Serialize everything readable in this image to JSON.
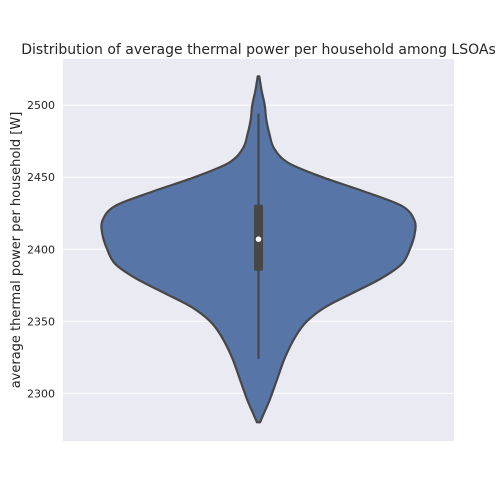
{
  "chart_data": {
    "type": "violin",
    "title": "Distribution of average thermal power per household among LSOAs",
    "xlabel": "",
    "ylabel": "average thermal power per household [W]",
    "ylim": [
      2267,
      2532
    ],
    "yticks": [
      2300,
      2350,
      2400,
      2450,
      2500
    ],
    "grid": true,
    "legend": "none",
    "colors": {
      "background": "#eaeaf2",
      "grid": "#ffffff",
      "violin_fill": "#5875a8",
      "outline": "#474747",
      "median_dot": "#ffffff"
    },
    "stats": {
      "min": 2280,
      "whisker_low": 2324,
      "q1": 2385,
      "median": 2407,
      "q3": 2431,
      "whisker_high": 2494,
      "max": 2520
    },
    "density_profile": [
      {
        "y": 2280,
        "halfwidth": 0.01
      },
      {
        "y": 2285,
        "halfwidth": 0.03
      },
      {
        "y": 2295,
        "halfwidth": 0.07
      },
      {
        "y": 2310,
        "halfwidth": 0.12
      },
      {
        "y": 2325,
        "halfwidth": 0.17
      },
      {
        "y": 2340,
        "halfwidth": 0.24
      },
      {
        "y": 2350,
        "halfwidth": 0.31
      },
      {
        "y": 2360,
        "halfwidth": 0.43
      },
      {
        "y": 2370,
        "halfwidth": 0.61
      },
      {
        "y": 2380,
        "halfwidth": 0.79
      },
      {
        "y": 2390,
        "halfwidth": 0.92
      },
      {
        "y": 2400,
        "halfwidth": 0.97
      },
      {
        "y": 2410,
        "halfwidth": 1.0
      },
      {
        "y": 2420,
        "halfwidth": 1.0
      },
      {
        "y": 2430,
        "halfwidth": 0.92
      },
      {
        "y": 2440,
        "halfwidth": 0.68
      },
      {
        "y": 2450,
        "halfwidth": 0.41
      },
      {
        "y": 2460,
        "halfwidth": 0.19
      },
      {
        "y": 2470,
        "halfwidth": 0.1
      },
      {
        "y": 2480,
        "halfwidth": 0.07
      },
      {
        "y": 2490,
        "halfwidth": 0.05
      },
      {
        "y": 2500,
        "halfwidth": 0.04
      },
      {
        "y": 2510,
        "halfwidth": 0.02
      },
      {
        "y": 2520,
        "halfwidth": 0.005
      }
    ]
  }
}
